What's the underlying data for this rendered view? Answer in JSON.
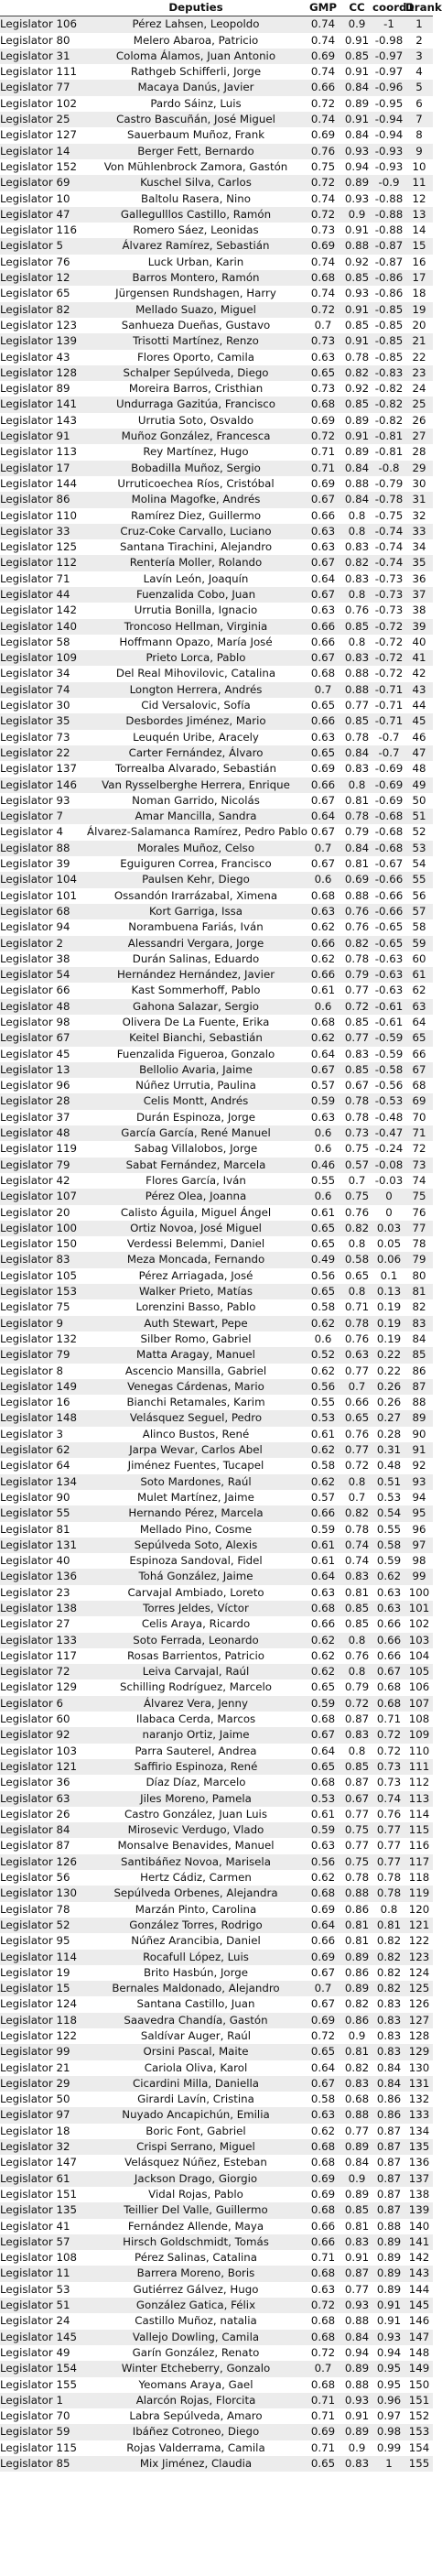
{
  "columns": [
    "",
    "Deputies",
    "GMP",
    "CC",
    "coord1",
    "Drank"
  ],
  "rows": [
    [
      "Legislator 106",
      "Pérez Lahsen, Leopoldo",
      "0.74",
      "0.9",
      "-1",
      "1"
    ],
    [
      "Legislator 80",
      "Melero Abaroa, Patricio",
      "0.74",
      "0.91",
      "-0.98",
      "2"
    ],
    [
      "Legislator 31",
      "Coloma Álamos, Juan Antonio",
      "0.69",
      "0.85",
      "-0.97",
      "3"
    ],
    [
      "Legislator 111",
      "Rathgeb Schifferli, Jorge",
      "0.74",
      "0.91",
      "-0.97",
      "4"
    ],
    [
      "Legislator 77",
      "Macaya Danús, Javier",
      "0.66",
      "0.84",
      "-0.96",
      "5"
    ],
    [
      "Legislator 102",
      "Pardo Sáinz, Luis",
      "0.72",
      "0.89",
      "-0.95",
      "6"
    ],
    [
      "Legislator 25",
      "Castro Bascuñán, José Miguel",
      "0.74",
      "0.91",
      "-0.94",
      "7"
    ],
    [
      "Legislator 127",
      "Sauerbaum Muñoz, Frank",
      "0.69",
      "0.84",
      "-0.94",
      "8"
    ],
    [
      "Legislator 14",
      "Berger Fett, Bernardo",
      "0.76",
      "0.93",
      "-0.93",
      "9"
    ],
    [
      "Legislator 152",
      "Von Mühlenbrock Zamora, Gastón",
      "0.75",
      "0.94",
      "-0.93",
      "10"
    ],
    [
      "Legislator 69",
      "Kuschel Silva, Carlos",
      "0.72",
      "0.89",
      "-0.9",
      "11"
    ],
    [
      "Legislator 10",
      "Baltolu Rasera, Nino",
      "0.74",
      "0.93",
      "-0.88",
      "12"
    ],
    [
      "Legislator 47",
      "Gallegulllos Castillo, Ramón",
      "0.72",
      "0.9",
      "-0.88",
      "13"
    ],
    [
      "Legislator 116",
      "Romero Sáez, Leonidas",
      "0.73",
      "0.91",
      "-0.88",
      "14"
    ],
    [
      "Legislator 5",
      "Álvarez Ramírez, Sebastián",
      "0.69",
      "0.88",
      "-0.87",
      "15"
    ],
    [
      "Legislator 76",
      "Luck Urban, Karin",
      "0.74",
      "0.92",
      "-0.87",
      "16"
    ],
    [
      "Legislator 12",
      "Barros Montero, Ramón",
      "0.68",
      "0.85",
      "-0.86",
      "17"
    ],
    [
      "Legislator 65",
      "Jürgensen Rundshagen, Harry",
      "0.74",
      "0.93",
      "-0.86",
      "18"
    ],
    [
      "Legislator 82",
      "Mellado Suazo, Miguel",
      "0.72",
      "0.91",
      "-0.85",
      "19"
    ],
    [
      "Legislator 123",
      "Sanhueza Dueñas, Gustavo",
      "0.7",
      "0.85",
      "-0.85",
      "20"
    ],
    [
      "Legislator 139",
      "Trisotti Martínez, Renzo",
      "0.73",
      "0.91",
      "-0.85",
      "21"
    ],
    [
      "Legislator 43",
      "Flores Oporto, Camila",
      "0.63",
      "0.78",
      "-0.85",
      "22"
    ],
    [
      "Legislator 128",
      "Schalper Sepúlveda, Diego",
      "0.65",
      "0.82",
      "-0.83",
      "23"
    ],
    [
      "Legislator 89",
      "Moreira Barros, Cristhian",
      "0.73",
      "0.92",
      "-0.82",
      "24"
    ],
    [
      "Legislator 141",
      "Undurraga Gazitúa, Francisco",
      "0.68",
      "0.85",
      "-0.82",
      "25"
    ],
    [
      "Legislator 143",
      "Urrutia Soto, Osvaldo",
      "0.69",
      "0.89",
      "-0.82",
      "26"
    ],
    [
      "Legislator 91",
      "Muñoz González, Francesca",
      "0.72",
      "0.91",
      "-0.81",
      "27"
    ],
    [
      "Legislator 113",
      "Rey Martínez, Hugo",
      "0.71",
      "0.89",
      "-0.81",
      "28"
    ],
    [
      "Legislator 17",
      "Bobadilla Muñoz, Sergio",
      "0.71",
      "0.84",
      "-0.8",
      "29"
    ],
    [
      "Legislator 144",
      "Urruticoechea Ríos, Cristóbal",
      "0.69",
      "0.88",
      "-0.79",
      "30"
    ],
    [
      "Legislator 86",
      "Molina Magofke, Andrés",
      "0.67",
      "0.84",
      "-0.78",
      "31"
    ],
    [
      "Legislator 110",
      "Ramírez Diez, Guillermo",
      "0.66",
      "0.8",
      "-0.75",
      "32"
    ],
    [
      "Legislator 33",
      "Cruz-Coke Carvallo, Luciano",
      "0.63",
      "0.8",
      "-0.74",
      "33"
    ],
    [
      "Legislator 125",
      "Santana Tirachini, Alejandro",
      "0.63",
      "0.83",
      "-0.74",
      "34"
    ],
    [
      "Legislator 112",
      "Rentería Moller, Rolando",
      "0.67",
      "0.82",
      "-0.74",
      "35"
    ],
    [
      "Legislator 71",
      "Lavín León, Joaquín",
      "0.64",
      "0.83",
      "-0.73",
      "36"
    ],
    [
      "Legislator 44",
      "Fuenzalida Cobo, Juan",
      "0.67",
      "0.8",
      "-0.73",
      "37"
    ],
    [
      "Legislator 142",
      "Urrutia Bonilla, Ignacio",
      "0.63",
      "0.76",
      "-0.73",
      "38"
    ],
    [
      "Legislator 140",
      "Troncoso Hellman, Virginia",
      "0.66",
      "0.85",
      "-0.72",
      "39"
    ],
    [
      "Legislator 58",
      "Hoffmann Opazo, María José",
      "0.66",
      "0.8",
      "-0.72",
      "40"
    ],
    [
      "Legislator 109",
      "Prieto Lorca, Pablo",
      "0.67",
      "0.83",
      "-0.72",
      "41"
    ],
    [
      "Legislator 34",
      "Del Real Mihovilovic, Catalina",
      "0.68",
      "0.88",
      "-0.72",
      "42"
    ],
    [
      "Legislator 74",
      "Longton Herrera, Andrés",
      "0.7",
      "0.88",
      "-0.71",
      "43"
    ],
    [
      "Legislator 30",
      "Cid Versalovic, Sofía",
      "0.65",
      "0.77",
      "-0.71",
      "44"
    ],
    [
      "Legislator 35",
      "Desbordes Jiménez, Mario",
      "0.66",
      "0.85",
      "-0.71",
      "45"
    ],
    [
      "Legislator 73",
      "Leuquén Uribe, Aracely",
      "0.63",
      "0.78",
      "-0.7",
      "46"
    ],
    [
      "Legislator 22",
      "Carter Fernández, Álvaro",
      "0.65",
      "0.84",
      "-0.7",
      "47"
    ],
    [
      "Legislator 137",
      "Torrealba Alvarado, Sebastián",
      "0.69",
      "0.83",
      "-0.69",
      "48"
    ],
    [
      "Legislator 146",
      "Van Rysselberghe Herrera, Enrique",
      "0.66",
      "0.8",
      "-0.69",
      "49"
    ],
    [
      "Legislator 93",
      "Noman Garrido, Nicolás",
      "0.67",
      "0.81",
      "-0.69",
      "50"
    ],
    [
      "Legislator 7",
      "Amar Mancilla, Sandra",
      "0.64",
      "0.78",
      "-0.68",
      "51"
    ],
    [
      "Legislator 4",
      "Álvarez-Salamanca Ramírez, Pedro Pablo",
      "0.67",
      "0.79",
      "-0.68",
      "52"
    ],
    [
      "Legislator 88",
      "Morales Muñoz, Celso",
      "0.7",
      "0.84",
      "-0.68",
      "53"
    ],
    [
      "Legislator 39",
      "Eguiguren Correa, Francisco",
      "0.67",
      "0.81",
      "-0.67",
      "54"
    ],
    [
      "Legislator 104",
      "Paulsen Kehr, Diego",
      "0.6",
      "0.69",
      "-0.66",
      "55"
    ],
    [
      "Legislator 101",
      "Ossandón Irarrázabal, Ximena",
      "0.68",
      "0.88",
      "-0.66",
      "56"
    ],
    [
      "Legislator 68",
      "Kort Garriga, Issa",
      "0.63",
      "0.76",
      "-0.66",
      "57"
    ],
    [
      "Legislator 94",
      "Norambuena Fariás, Iván",
      "0.62",
      "0.76",
      "-0.65",
      "58"
    ],
    [
      "Legislator 2",
      "Alessandri Vergara, Jorge",
      "0.66",
      "0.82",
      "-0.65",
      "59"
    ],
    [
      "Legislator 38",
      "Durán Salinas, Eduardo",
      "0.62",
      "0.78",
      "-0.63",
      "60"
    ],
    [
      "Legislator 54",
      "Hernández Hernández, Javier",
      "0.66",
      "0.79",
      "-0.63",
      "61"
    ],
    [
      "Legislator 66",
      "Kast Sommerhoff, Pablo",
      "0.61",
      "0.77",
      "-0.63",
      "62"
    ],
    [
      "Legislator 48",
      "Gahona Salazar, Sergio",
      "0.6",
      "0.72",
      "-0.61",
      "63"
    ],
    [
      "Legislator 98",
      "Olivera De La Fuente, Erika",
      "0.68",
      "0.85",
      "-0.61",
      "64"
    ],
    [
      "Legislator 67",
      "Keitel Bianchi, Sebastián",
      "0.62",
      "0.77",
      "-0.59",
      "65"
    ],
    [
      "Legislator 45",
      "Fuenzalida Figueroa, Gonzalo",
      "0.64",
      "0.83",
      "-0.59",
      "66"
    ],
    [
      "Legislator 13",
      "Bellolio Avaria, Jaime",
      "0.67",
      "0.85",
      "-0.58",
      "67"
    ],
    [
      "Legislator 96",
      "Núñez Urrutia, Paulina",
      "0.57",
      "0.67",
      "-0.56",
      "68"
    ],
    [
      "Legislator 28",
      "Celis Montt, Andrés",
      "0.59",
      "0.78",
      "-0.53",
      "69"
    ],
    [
      "Legislator 37",
      "Durán Espinoza, Jorge",
      "0.63",
      "0.78",
      "-0.48",
      "70"
    ],
    [
      "Legislator 48",
      "García García, René Manuel",
      "0.6",
      "0.73",
      "-0.47",
      "71"
    ],
    [
      "Legislator 119",
      "Sabag Villalobos, Jorge",
      "0.6",
      "0.75",
      "-0.24",
      "72"
    ],
    [
      "Legislator 79",
      "Sabat Fernández, Marcela",
      "0.46",
      "0.57",
      "-0.08",
      "73"
    ],
    [
      "Legislator 42",
      "Flores García, Iván",
      "0.55",
      "0.7",
      "-0.03",
      "74"
    ],
    [
      "Legislator 107",
      "Pérez Olea, Joanna",
      "0.6",
      "0.75",
      "0",
      "75"
    ],
    [
      "Legislator 20",
      "Calisto Águila, Miguel Ángel",
      "0.61",
      "0.76",
      "0",
      "76"
    ],
    [
      "Legislator 100",
      "Ortiz Novoa, José Miguel",
      "0.65",
      "0.82",
      "0.03",
      "77"
    ],
    [
      "Legislator 150",
      "Verdessi Belemmi, Daniel",
      "0.65",
      "0.8",
      "0.05",
      "78"
    ],
    [
      "Legislator 83",
      "Meza Moncada, Fernando",
      "0.49",
      "0.58",
      "0.06",
      "79"
    ],
    [
      "Legislator 105",
      "Pérez Arriagada, José",
      "0.56",
      "0.65",
      "0.1",
      "80"
    ],
    [
      "Legislator 153",
      "Walker Prieto, Matías",
      "0.65",
      "0.8",
      "0.13",
      "81"
    ],
    [
      "Legislator 75",
      "Lorenzini Basso, Pablo",
      "0.58",
      "0.71",
      "0.19",
      "82"
    ],
    [
      "Legislator 9",
      "Auth Stewart, Pepe",
      "0.62",
      "0.78",
      "0.19",
      "83"
    ],
    [
      "Legislator 132",
      "Silber Romo, Gabriel",
      "0.6",
      "0.76",
      "0.19",
      "84"
    ],
    [
      "Legislator 79",
      "Matta Aragay, Manuel",
      "0.52",
      "0.63",
      "0.22",
      "85"
    ],
    [
      "Legislator 8",
      "Ascencio Mansilla, Gabriel",
      "0.62",
      "0.77",
      "0.22",
      "86"
    ],
    [
      "Legislator 149",
      "Venegas Cárdenas, Mario",
      "0.56",
      "0.7",
      "0.26",
      "87"
    ],
    [
      "Legislator 16",
      "Bianchi Retamales, Karim",
      "0.55",
      "0.66",
      "0.26",
      "88"
    ],
    [
      "Legislator 148",
      "Velásquez Seguel, Pedro",
      "0.53",
      "0.65",
      "0.27",
      "89"
    ],
    [
      "Legislator 3",
      "Alinco Bustos, René",
      "0.61",
      "0.76",
      "0.28",
      "90"
    ],
    [
      "Legislator 62",
      "Jarpa Wevar, Carlos Abel",
      "0.62",
      "0.77",
      "0.31",
      "91"
    ],
    [
      "Legislator 64",
      "Jiménez Fuentes, Tucapel",
      "0.58",
      "0.72",
      "0.48",
      "92"
    ],
    [
      "Legislator 134",
      "Soto Mardones, Raúl",
      "0.62",
      "0.8",
      "0.51",
      "93"
    ],
    [
      "Legislator 90",
      "Mulet Martínez, Jaime",
      "0.57",
      "0.7",
      "0.53",
      "94"
    ],
    [
      "Legislator 55",
      "Hernando Pérez, Marcela",
      "0.66",
      "0.82",
      "0.54",
      "95"
    ],
    [
      "Legislator 81",
      "Mellado Pino, Cosme",
      "0.59",
      "0.78",
      "0.55",
      "96"
    ],
    [
      "Legislator 131",
      "Sepúlveda Soto, Alexis",
      "0.61",
      "0.74",
      "0.58",
      "97"
    ],
    [
      "Legislator 40",
      "Espinoza Sandoval, Fidel",
      "0.61",
      "0.74",
      "0.59",
      "98"
    ],
    [
      "Legislator 136",
      "Tohá González, Jaime",
      "0.64",
      "0.83",
      "0.62",
      "99"
    ],
    [
      "Legislator 23",
      "Carvajal Ambiado, Loreto",
      "0.63",
      "0.81",
      "0.63",
      "100"
    ],
    [
      "Legislator 138",
      "Torres Jeldes, Víctor",
      "0.68",
      "0.85",
      "0.63",
      "101"
    ],
    [
      "Legislator 27",
      "Celis Araya, Ricardo",
      "0.66",
      "0.85",
      "0.66",
      "102"
    ],
    [
      "Legislator 133",
      "Soto Ferrada, Leonardo",
      "0.62",
      "0.8",
      "0.66",
      "103"
    ],
    [
      "Legislator 117",
      "Rosas Barrientos, Patricio",
      "0.62",
      "0.76",
      "0.66",
      "104"
    ],
    [
      "Legislator 72",
      "Leiva Carvajal, Raúl",
      "0.62",
      "0.8",
      "0.67",
      "105"
    ],
    [
      "Legislator 129",
      "Schilling Rodríguez, Marcelo",
      "0.65",
      "0.79",
      "0.68",
      "106"
    ],
    [
      "Legislator 6",
      "Álvarez Vera, Jenny",
      "0.59",
      "0.72",
      "0.68",
      "107"
    ],
    [
      "Legislator 60",
      "Ilabaca Cerda, Marcos",
      "0.68",
      "0.87",
      "0.71",
      "108"
    ],
    [
      "Legislator 92",
      "naranjo Ortiz, Jaime",
      "0.67",
      "0.83",
      "0.72",
      "109"
    ],
    [
      "Legislator 103",
      "Parra Sauterel, Andrea",
      "0.64",
      "0.8",
      "0.72",
      "110"
    ],
    [
      "Legislator 121",
      "Saffirio Espinoza, René",
      "0.65",
      "0.85",
      "0.73",
      "111"
    ],
    [
      "Legislator 36",
      "Díaz Díaz, Marcelo",
      "0.68",
      "0.87",
      "0.73",
      "112"
    ],
    [
      "Legislator 63",
      "Jiles Moreno, Pamela",
      "0.53",
      "0.67",
      "0.74",
      "113"
    ],
    [
      "Legislator 26",
      "Castro González, Juan Luis",
      "0.61",
      "0.77",
      "0.76",
      "114"
    ],
    [
      "Legislator 84",
      "Mirosevic Verdugo, Vlado",
      "0.59",
      "0.75",
      "0.77",
      "115"
    ],
    [
      "Legislator 87",
      "Monsalve Benavides, Manuel",
      "0.63",
      "0.77",
      "0.77",
      "116"
    ],
    [
      "Legislator 126",
      "Santibáñez Novoa, Marisela",
      "0.56",
      "0.75",
      "0.77",
      "117"
    ],
    [
      "Legislator 56",
      "Hertz Cádiz, Carmen",
      "0.62",
      "0.78",
      "0.78",
      "118"
    ],
    [
      "Legislator 130",
      "Sepúlveda Orbenes, Alejandra",
      "0.68",
      "0.88",
      "0.78",
      "119"
    ],
    [
      "Legislator 78",
      "Marzán Pinto, Carolina",
      "0.69",
      "0.86",
      "0.8",
      "120"
    ],
    [
      "Legislator 52",
      "González Torres, Rodrigo",
      "0.64",
      "0.81",
      "0.81",
      "121"
    ],
    [
      "Legislator 95",
      "Núñez Arancibia, Daniel",
      "0.66",
      "0.81",
      "0.82",
      "122"
    ],
    [
      "Legislator 114",
      "Rocafull López, Luis",
      "0.69",
      "0.89",
      "0.82",
      "123"
    ],
    [
      "Legislator 19",
      "Brito Hasbún, Jorge",
      "0.67",
      "0.86",
      "0.82",
      "124"
    ],
    [
      "Legislator 15",
      "Bernales Maldonado, Alejandro",
      "0.7",
      "0.89",
      "0.82",
      "125"
    ],
    [
      "Legislator 124",
      "Santana Castillo, Juan",
      "0.67",
      "0.82",
      "0.83",
      "126"
    ],
    [
      "Legislator 118",
      "Saavedra Chandía, Gastón",
      "0.69",
      "0.86",
      "0.83",
      "127"
    ],
    [
      "Legislator 122",
      "Saldívar Auger, Raúl",
      "0.72",
      "0.9",
      "0.83",
      "128"
    ],
    [
      "Legislator 99",
      "Orsini Pascal, Maite",
      "0.65",
      "0.81",
      "0.83",
      "129"
    ],
    [
      "Legislator 21",
      "Cariola Oliva, Karol",
      "0.64",
      "0.82",
      "0.84",
      "130"
    ],
    [
      "Legislator 29",
      "Cicardini Milla, Daniella",
      "0.67",
      "0.83",
      "0.84",
      "131"
    ],
    [
      "Legislator 50",
      "Girardi Lavín, Cristina",
      "0.58",
      "0.68",
      "0.86",
      "132"
    ],
    [
      "Legislator 97",
      "Nuyado Ancapichún, Emilia",
      "0.63",
      "0.88",
      "0.86",
      "133"
    ],
    [
      "Legislator 18",
      "Boric Font, Gabriel",
      "0.62",
      "0.77",
      "0.87",
      "134"
    ],
    [
      "Legislator 32",
      "Crispi Serrano, Miguel",
      "0.68",
      "0.89",
      "0.87",
      "135"
    ],
    [
      "Legislator 147",
      "Velásquez Núñez, Esteban",
      "0.68",
      "0.84",
      "0.87",
      "136"
    ],
    [
      "Legislator 61",
      "Jackson Drago, Giorgio",
      "0.69",
      "0.9",
      "0.87",
      "137"
    ],
    [
      "Legislator 151",
      "Vidal Rojas, Pablo",
      "0.69",
      "0.89",
      "0.87",
      "138"
    ],
    [
      "Legislator 135",
      "Teillier Del Valle, Guillermo",
      "0.68",
      "0.85",
      "0.87",
      "139"
    ],
    [
      "Legislator 41",
      "Fernández Allende, Maya",
      "0.66",
      "0.81",
      "0.88",
      "140"
    ],
    [
      "Legislator 57",
      "Hirsch Goldschmidt, Tomás",
      "0.66",
      "0.83",
      "0.89",
      "141"
    ],
    [
      "Legislator 108",
      "Pérez Salinas, Catalina",
      "0.71",
      "0.91",
      "0.89",
      "142"
    ],
    [
      "Legislator 11",
      "Barrera Moreno, Boris",
      "0.68",
      "0.87",
      "0.89",
      "143"
    ],
    [
      "Legislator 53",
      "Gutiérrez Gálvez, Hugo",
      "0.63",
      "0.77",
      "0.89",
      "144"
    ],
    [
      "Legislator 51",
      "González Gatica, Félix",
      "0.72",
      "0.93",
      "0.91",
      "145"
    ],
    [
      "Legislator 24",
      "Castillo Muñoz, natalia",
      "0.68",
      "0.88",
      "0.91",
      "146"
    ],
    [
      "Legislator 145",
      "Vallejo Dowling, Camila",
      "0.68",
      "0.84",
      "0.93",
      "147"
    ],
    [
      "Legislator 49",
      "Garín González, Renato",
      "0.72",
      "0.94",
      "0.94",
      "148"
    ],
    [
      "Legislator 154",
      "Winter Etcheberry, Gonzalo",
      "0.7",
      "0.89",
      "0.95",
      "149"
    ],
    [
      "Legislator 155",
      "Yeomans Araya, Gael",
      "0.68",
      "0.88",
      "0.95",
      "150"
    ],
    [
      "Legislator 1",
      "Alarcón Rojas, Florcita",
      "0.71",
      "0.93",
      "0.96",
      "151"
    ],
    [
      "Legislator 70",
      "Labra Sepúlveda, Amaro",
      "0.71",
      "0.91",
      "0.97",
      "152"
    ],
    [
      "Legislator 59",
      "Ibáñez Cotroneo, Diego",
      "0.69",
      "0.89",
      "0.98",
      "153"
    ],
    [
      "Legislator 115",
      "Rojas Valderrama, Camila",
      "0.71",
      "0.9",
      "0.99",
      "154"
    ],
    [
      "Legislator 85",
      "Mix Jiménez, Claudia",
      "0.65",
      "0.83",
      "1",
      "155"
    ]
  ]
}
